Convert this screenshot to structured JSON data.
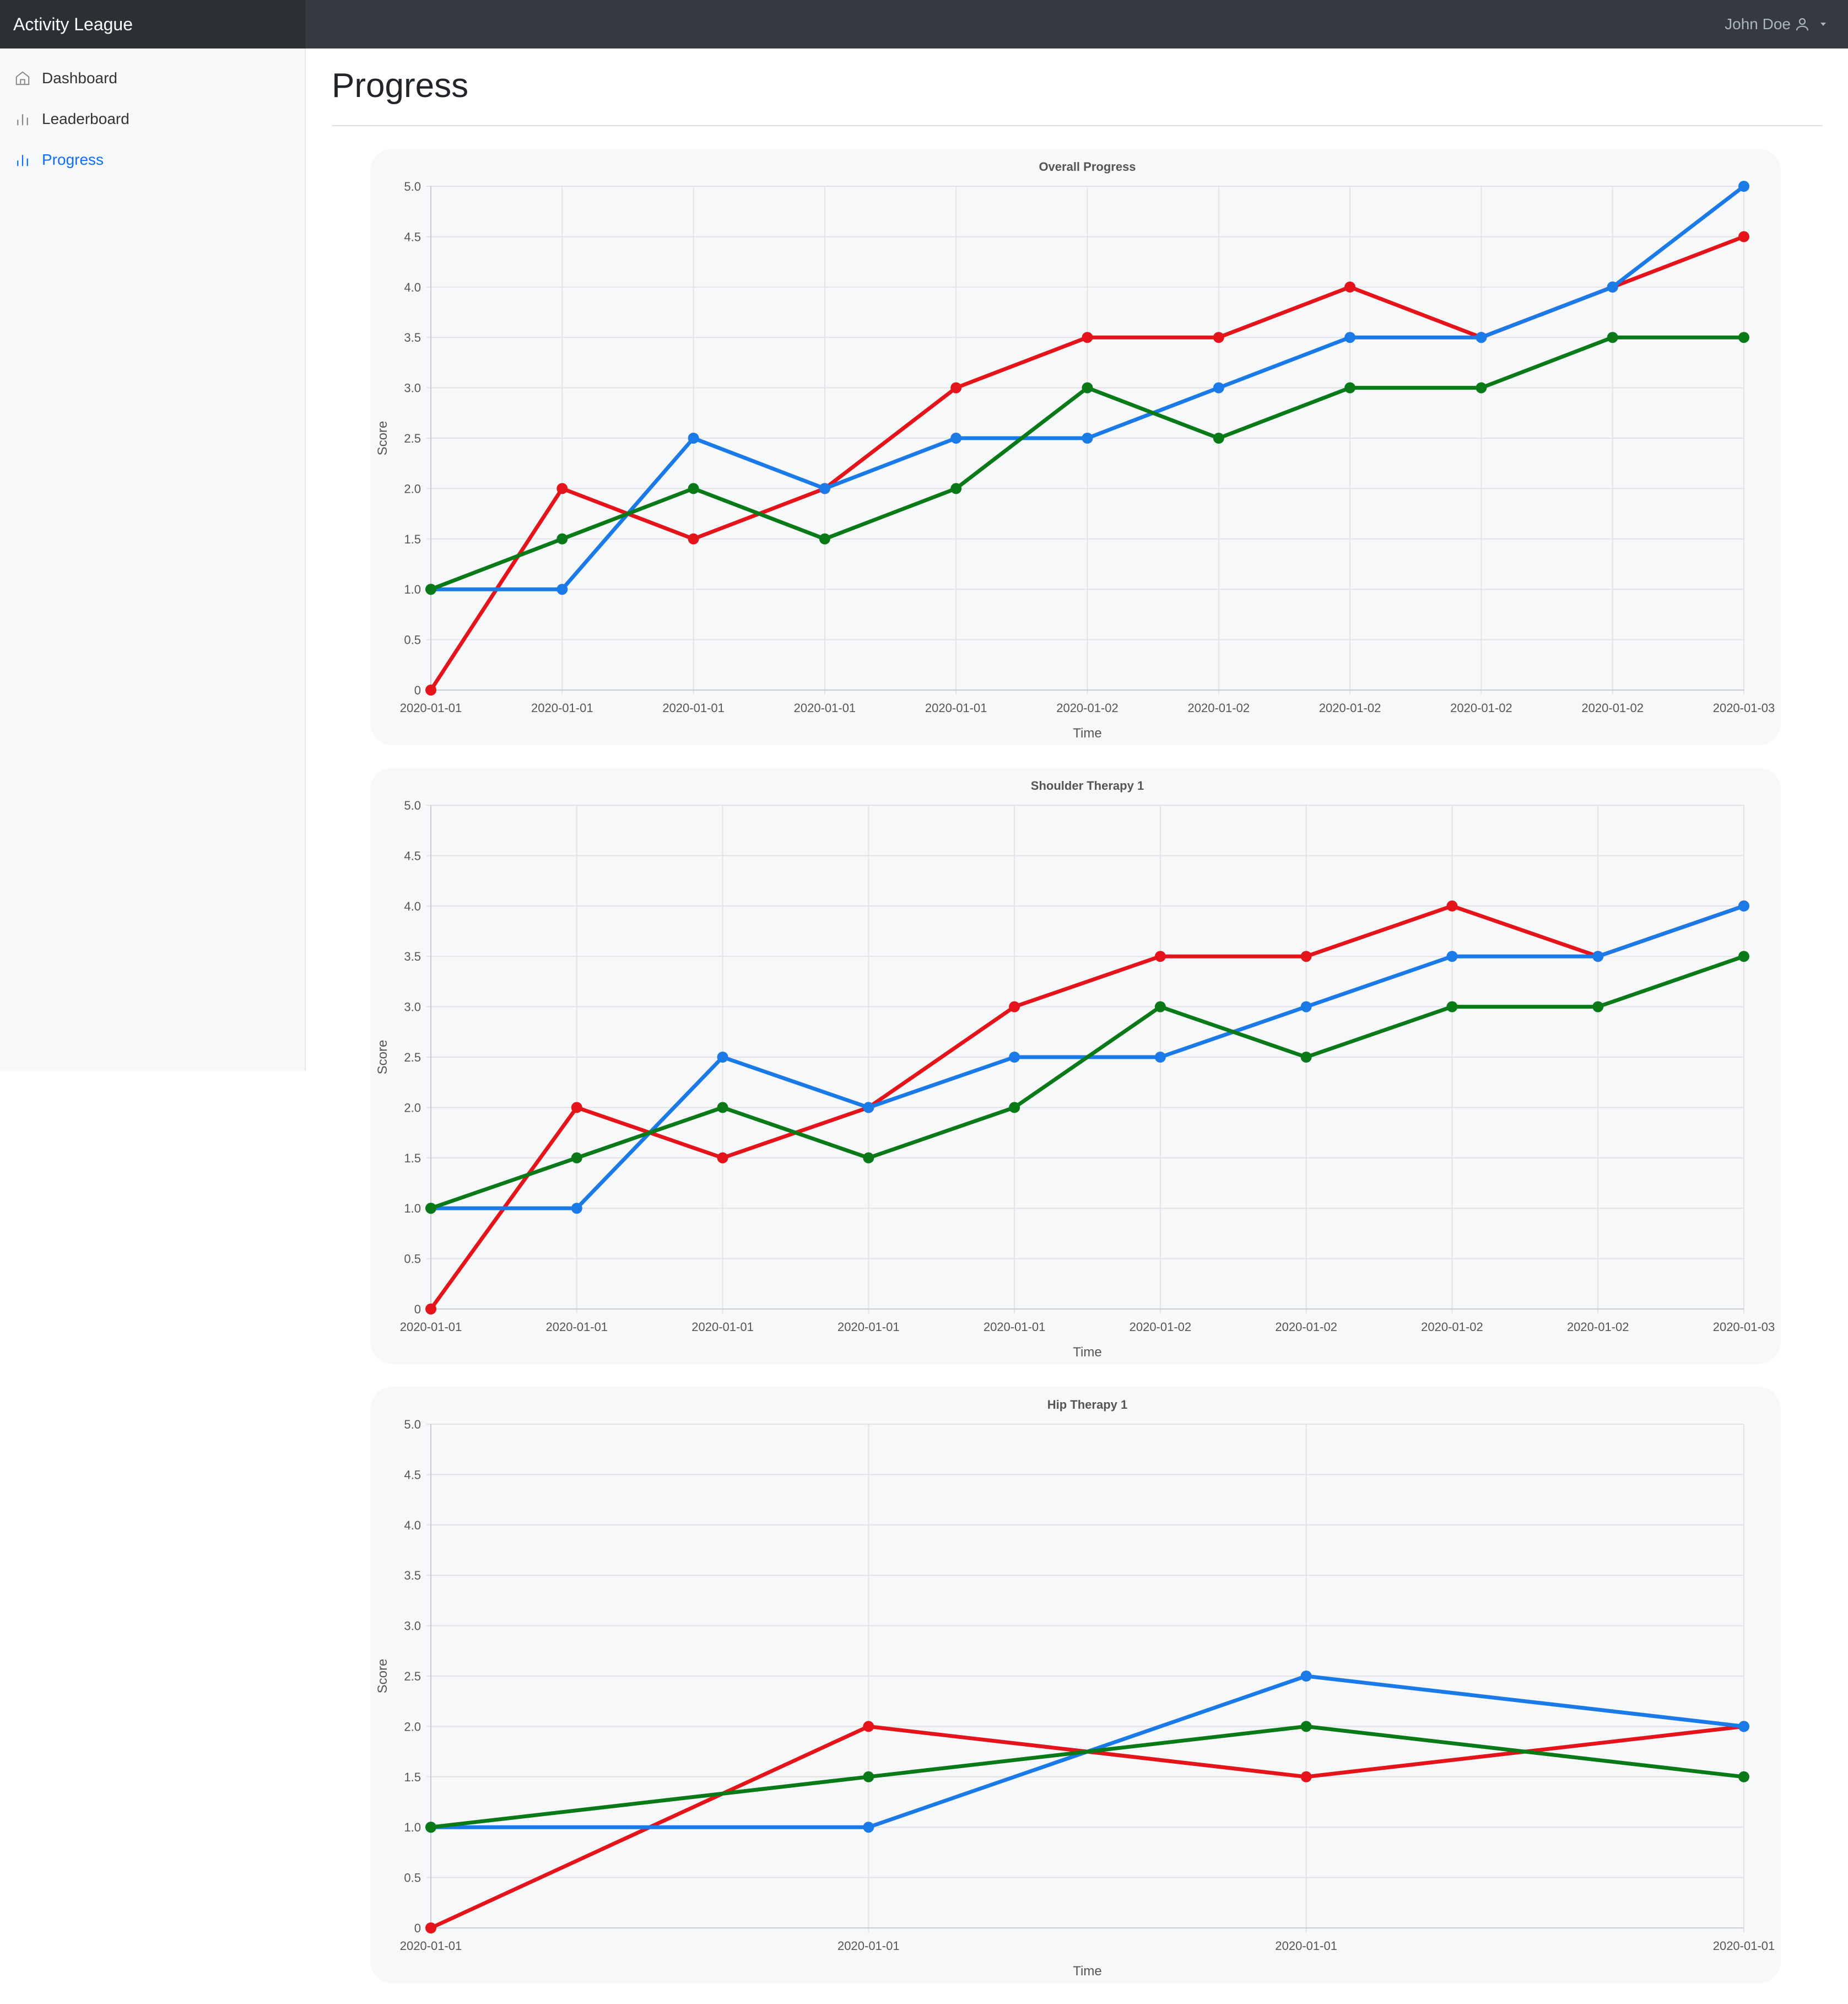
{
  "app": {
    "brand": "Activity League",
    "user_name": "John Doe"
  },
  "sidebar": {
    "items": [
      {
        "label": "Dashboard",
        "icon": "home-icon",
        "active": false
      },
      {
        "label": "Leaderboard",
        "icon": "bar-chart-icon",
        "active": false
      },
      {
        "label": "Progress",
        "icon": "bar-chart-icon",
        "active": true
      }
    ]
  },
  "page": {
    "title": "Progress"
  },
  "colors": {
    "red": "#e5141b",
    "blue": "#1a7ae8",
    "green": "#0a7a18"
  },
  "chart_data": [
    {
      "type": "line",
      "title": "Overall Progress",
      "xlabel": "Time",
      "ylabel": "Score",
      "ylim": [
        0,
        5
      ],
      "yticks": [
        "0",
        "0.5",
        "1.0",
        "1.5",
        "2.0",
        "2.5",
        "3.0",
        "3.5",
        "4.0",
        "4.5",
        "5.0"
      ],
      "x": [
        "2020-01-01",
        "2020-01-01",
        "2020-01-01",
        "2020-01-01",
        "2020-01-01",
        "2020-01-02",
        "2020-01-02",
        "2020-01-02",
        "2020-01-02",
        "2020-01-02",
        "2020-01-03"
      ],
      "grid": true,
      "series": [
        {
          "color": "#e5141b",
          "values": [
            0,
            2,
            1.5,
            2,
            3,
            3.5,
            3.5,
            4,
            3.5,
            4,
            4.5
          ]
        },
        {
          "color": "#1a7ae8",
          "values": [
            1,
            1,
            2.5,
            2,
            2.5,
            2.5,
            3,
            3.5,
            3.5,
            4,
            5
          ]
        },
        {
          "color": "#0a7a18",
          "values": [
            1,
            1.5,
            2,
            1.5,
            2,
            3,
            2.5,
            3,
            3,
            3.5,
            3.5
          ]
        }
      ]
    },
    {
      "type": "line",
      "title": "Shoulder Therapy 1",
      "xlabel": "Time",
      "ylabel": "Score",
      "ylim": [
        0,
        5
      ],
      "yticks": [
        "0",
        "0.5",
        "1.0",
        "1.5",
        "2.0",
        "2.5",
        "3.0",
        "3.5",
        "4.0",
        "4.5",
        "5.0"
      ],
      "x": [
        "2020-01-01",
        "2020-01-01",
        "2020-01-01",
        "2020-01-01",
        "2020-01-01",
        "2020-01-02",
        "2020-01-02",
        "2020-01-02",
        "2020-01-02",
        "2020-01-03"
      ],
      "grid": true,
      "series": [
        {
          "color": "#e5141b",
          "values": [
            0,
            2,
            1.5,
            2,
            3,
            3.5,
            3.5,
            4,
            3.5,
            4
          ]
        },
        {
          "color": "#1a7ae8",
          "values": [
            1,
            1,
            2.5,
            2,
            2.5,
            2.5,
            3,
            3.5,
            3.5,
            4
          ]
        },
        {
          "color": "#0a7a18",
          "values": [
            1,
            1.5,
            2,
            1.5,
            2,
            3,
            2.5,
            3,
            3,
            3.5
          ]
        }
      ]
    },
    {
      "type": "line",
      "title": "Hip Therapy 1",
      "xlabel": "Time",
      "ylabel": "Score",
      "ylim": [
        0,
        5
      ],
      "yticks": [
        "0",
        "0.5",
        "1.0",
        "1.5",
        "2.0",
        "2.5",
        "3.0",
        "3.5",
        "4.0",
        "4.5",
        "5.0"
      ],
      "x": [
        "2020-01-01",
        "2020-01-01",
        "2020-01-01",
        "2020-01-01"
      ],
      "grid": true,
      "series": [
        {
          "color": "#e5141b",
          "values": [
            0,
            2,
            1.5,
            2
          ]
        },
        {
          "color": "#1a7ae8",
          "values": [
            1,
            1,
            2.5,
            2
          ]
        },
        {
          "color": "#0a7a18",
          "values": [
            1,
            1.5,
            2,
            1.5
          ]
        }
      ]
    }
  ]
}
